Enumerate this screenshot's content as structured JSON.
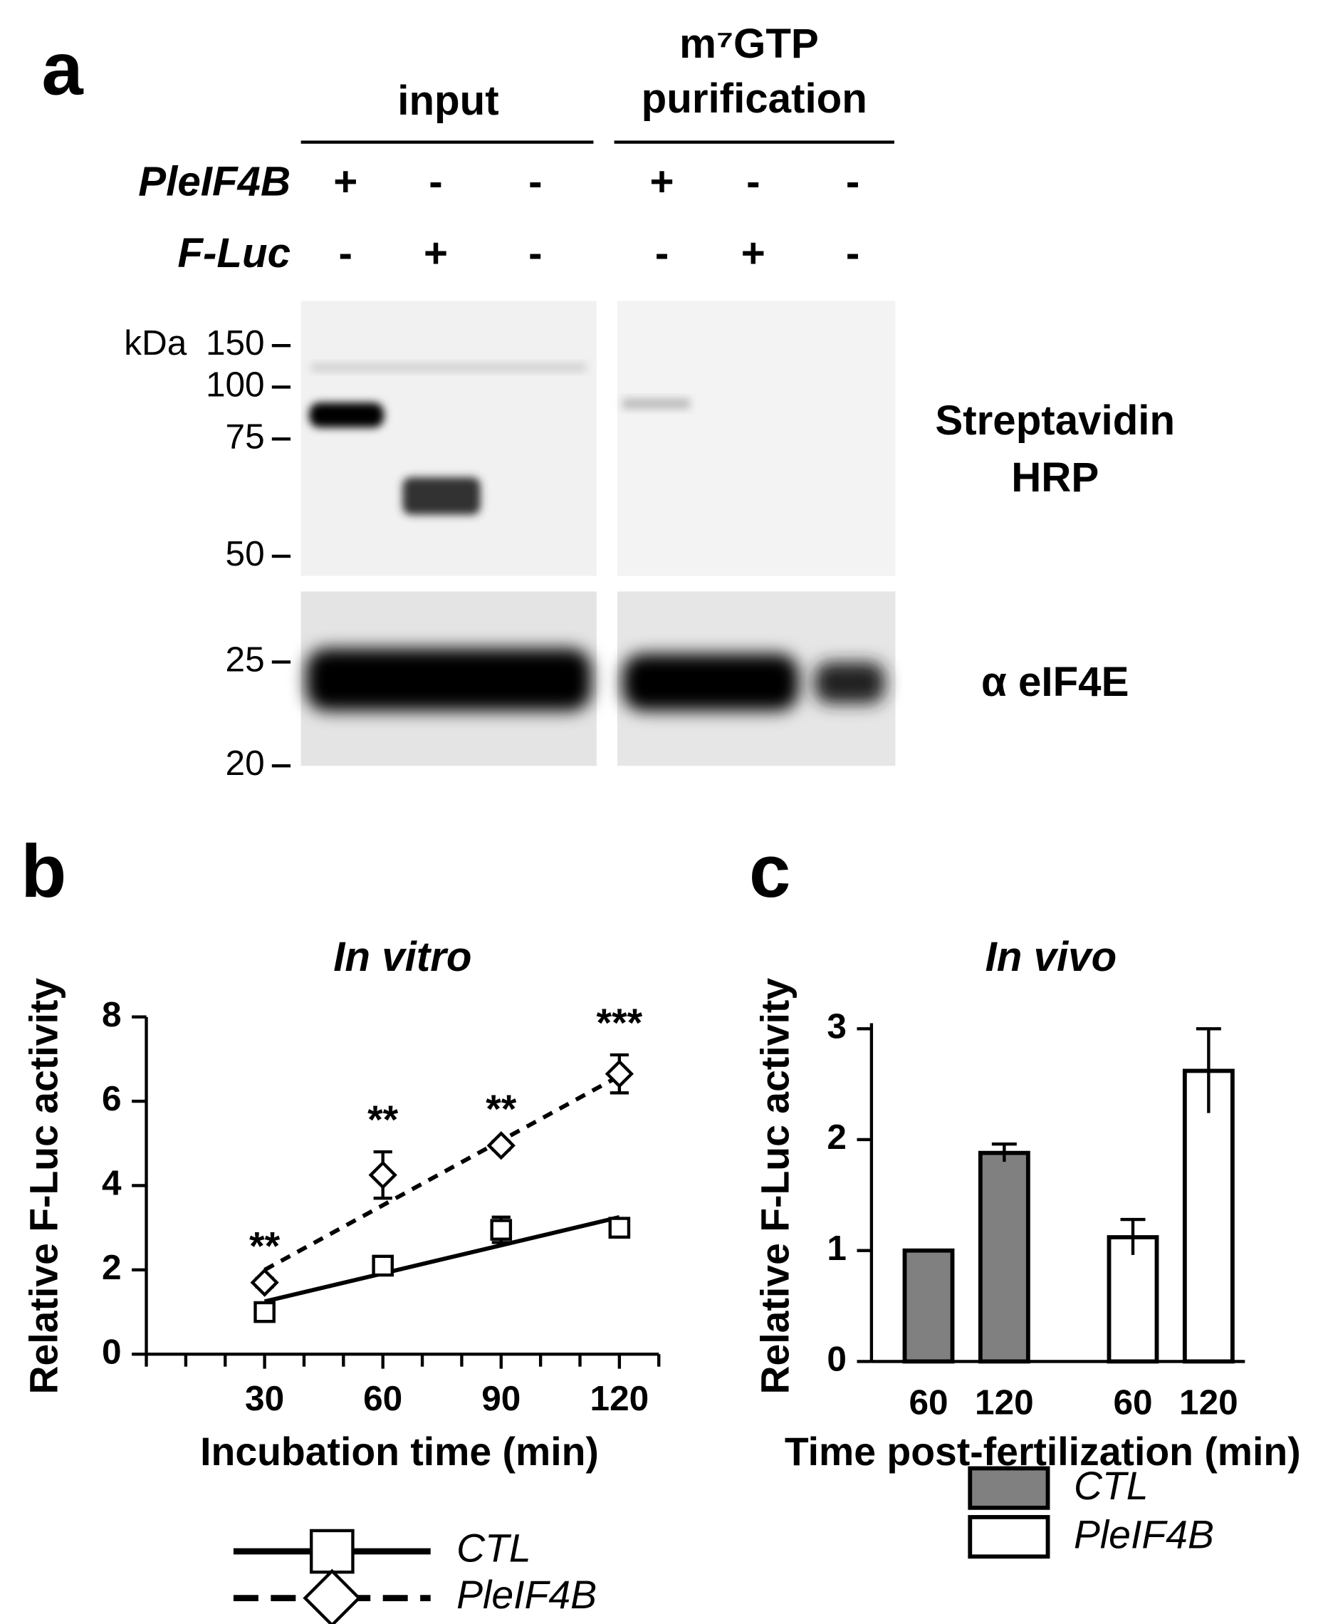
{
  "panel_labels": [
    "a",
    "b",
    "c"
  ],
  "blot": {
    "groups": [
      "input",
      "m⁷GTP",
      "purification"
    ],
    "rows": [
      {
        "name": "PleIF4B",
        "signs": [
          "+",
          "-",
          "-",
          "+",
          "-",
          "-"
        ]
      },
      {
        "name": "F-Luc",
        "signs": [
          "-",
          "+",
          "-",
          "-",
          "+",
          "-"
        ]
      }
    ],
    "kda": "kDa",
    "markers": [
      150,
      100,
      75,
      50,
      25,
      20
    ],
    "probes": [
      "Streptavidin",
      "HRP",
      "α eIF4E"
    ]
  },
  "chart_data": [
    {
      "type": "line",
      "title": "In vitro",
      "xlabel": "Incubation time (min)",
      "ylabel": "Relative F-Luc activity",
      "x": [
        30,
        60,
        90,
        120
      ],
      "xlim": [
        0,
        130
      ],
      "xticks": [
        30,
        60,
        90,
        120
      ],
      "xminorticks": [
        0,
        10,
        20,
        40,
        50,
        70,
        80,
        100,
        110,
        130
      ],
      "ylim": [
        0,
        8
      ],
      "yticks": [
        0,
        2,
        4,
        6,
        8
      ],
      "series": [
        {
          "name": "CTL",
          "color": "#000000",
          "marker": "square",
          "dash": false,
          "values": [
            1.0,
            2.1,
            2.95,
            3.0
          ],
          "errors": [
            0.05,
            0.1,
            0.3,
            0.1
          ],
          "fit": {
            "x": [
              30,
              120
            ],
            "values": [
              1.25,
              3.25
            ]
          }
        },
        {
          "name": "PleIF4B",
          "color": "#000000",
          "marker": "diamond",
          "dash": true,
          "values": [
            1.7,
            4.25,
            4.95,
            6.65
          ],
          "errors": [
            0.1,
            0.55,
            0.1,
            0.45
          ],
          "fit": {
            "x": [
              30,
              120
            ],
            "values": [
              2.0,
              6.6
            ]
          }
        }
      ],
      "annotations": [
        "**",
        "**",
        "**",
        "***"
      ]
    },
    {
      "type": "bar",
      "title": "In vivo",
      "xlabel": "Time post-fertilization (min)",
      "ylabel": "Relative F-Luc activity",
      "categories": [
        "60",
        "120",
        "60",
        "120"
      ],
      "ylim": [
        0,
        3.05
      ],
      "yticks": [
        0,
        1,
        2,
        3
      ],
      "series": [
        {
          "name": "CTL",
          "color": "#808080",
          "values": [
            1,
            1.88,
            null,
            null
          ],
          "errors": [
            0,
            0.08,
            null,
            null
          ]
        },
        {
          "name": "PleIF4B",
          "color": "#ffffff",
          "values": [
            null,
            null,
            1.12,
            2.62
          ],
          "errors": [
            null,
            null,
            0.16,
            0.38
          ]
        }
      ]
    }
  ]
}
